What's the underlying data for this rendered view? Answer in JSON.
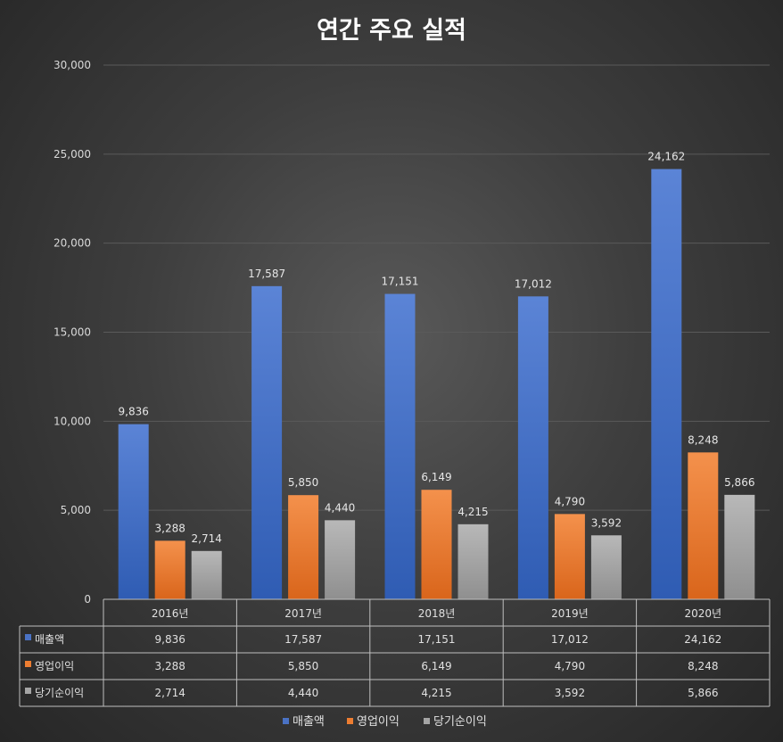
{
  "chart_data": {
    "type": "bar",
    "title": "연간 주요 실적",
    "categories": [
      "2016년",
      "2017년",
      "2018년",
      "2019년",
      "2020년"
    ],
    "series": [
      {
        "name": "매출액",
        "values": [
          9836,
          17587,
          17151,
          17012,
          24162
        ],
        "labels": [
          "9,836",
          "17,587",
          "17,151",
          "17,012",
          "24,162"
        ],
        "color": "#4a72c4"
      },
      {
        "name": "영업이익",
        "values": [
          3288,
          5850,
          6149,
          4790,
          8248
        ],
        "labels": [
          "3,288",
          "5,850",
          "6,149",
          "4,790",
          "8,248"
        ],
        "color": "#ed7d31"
      },
      {
        "name": "당기순이익",
        "values": [
          2714,
          4440,
          4215,
          3592,
          5866
        ],
        "labels": [
          "2,714",
          "4,440",
          "4,215",
          "3,592",
          "5,866"
        ],
        "color": "#a5a5a5"
      }
    ],
    "ylim": [
      0,
      30000
    ],
    "yticks": [
      0,
      5000,
      10000,
      15000,
      20000,
      25000,
      30000
    ],
    "ytick_labels": [
      "0",
      "5,000",
      "10,000",
      "15,000",
      "20,000",
      "25,000",
      "30,000"
    ],
    "xlabel": "",
    "ylabel": "",
    "grid": true,
    "legend_position": "bottom",
    "data_table": true
  }
}
